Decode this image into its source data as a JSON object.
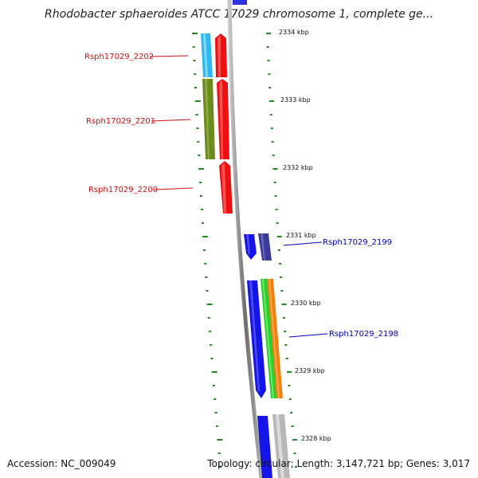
{
  "title": "Rhodobacter sphaeroides ATCC 17029 chromosome 1, complete ge...",
  "accession": "Accession: NC_009049",
  "topology": "Topology: circular; Length: 3,147,721 bp; Genes: 3,017",
  "colors": {
    "backbone": "#808080",
    "tick_green": "#1f8a1f",
    "left_label": "#d01010",
    "right_label": "#0000c0"
  },
  "scale_labels": [
    "2334 kbp",
    "2333 kbp",
    "2332 kbp",
    "2331 kbp",
    "2330 kbp",
    "2329 kbp",
    "2328 kbp"
  ],
  "gene_labels": [
    {
      "id": "Rsph17029_2202",
      "side": "left"
    },
    {
      "id": "Rsph17029_2201",
      "side": "left"
    },
    {
      "id": "Rsph17029_2200",
      "side": "left"
    },
    {
      "id": "Rsph17029_2199",
      "side": "right"
    },
    {
      "id": "Rsph17029_2198",
      "side": "right"
    }
  ]
}
